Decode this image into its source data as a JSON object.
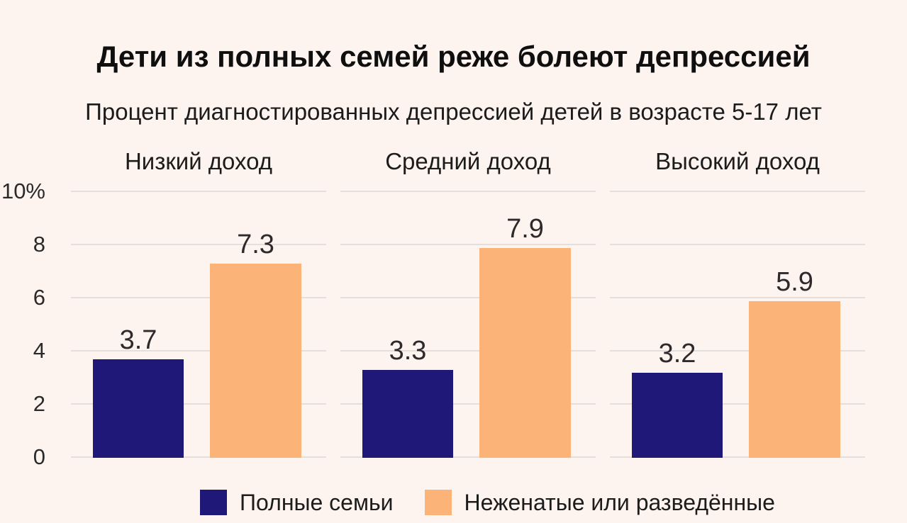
{
  "title": "Дети из полных семей реже болеют депрессией",
  "subtitle": "Процент диагностированных депрессией детей в возрасте 5-17 лет",
  "colors": {
    "background": "#fdf3ef",
    "gridline": "#e4dedd",
    "text": "#1c1c1c",
    "bar_full_families": "#201878",
    "bar_single_divorced": "#fcb377"
  },
  "chart_data": {
    "type": "bar",
    "title": "Дети из полных семей реже болеют депрессией",
    "subtitle": "Процент диагностированных депрессией детей в возрасте 5-17 лет",
    "facets": [
      "Низкий доход",
      "Средний доход",
      "Высокий доход"
    ],
    "series": [
      {
        "name": "Полные семьи",
        "color": "#201878",
        "values": [
          3.7,
          3.3,
          3.2
        ]
      },
      {
        "name": "Неженатые или разведённые",
        "color": "#fcb377",
        "values": [
          7.3,
          7.9,
          5.9
        ]
      }
    ],
    "y_ticks": [
      {
        "label": "10%",
        "value": 10
      },
      {
        "label": "8",
        "value": 8
      },
      {
        "label": "6",
        "value": 6
      },
      {
        "label": "4",
        "value": 4
      },
      {
        "label": "2",
        "value": 2
      },
      {
        "label": "0",
        "value": 0
      }
    ],
    "ylim": [
      0,
      10
    ],
    "grid": true,
    "legend_position": "bottom"
  }
}
